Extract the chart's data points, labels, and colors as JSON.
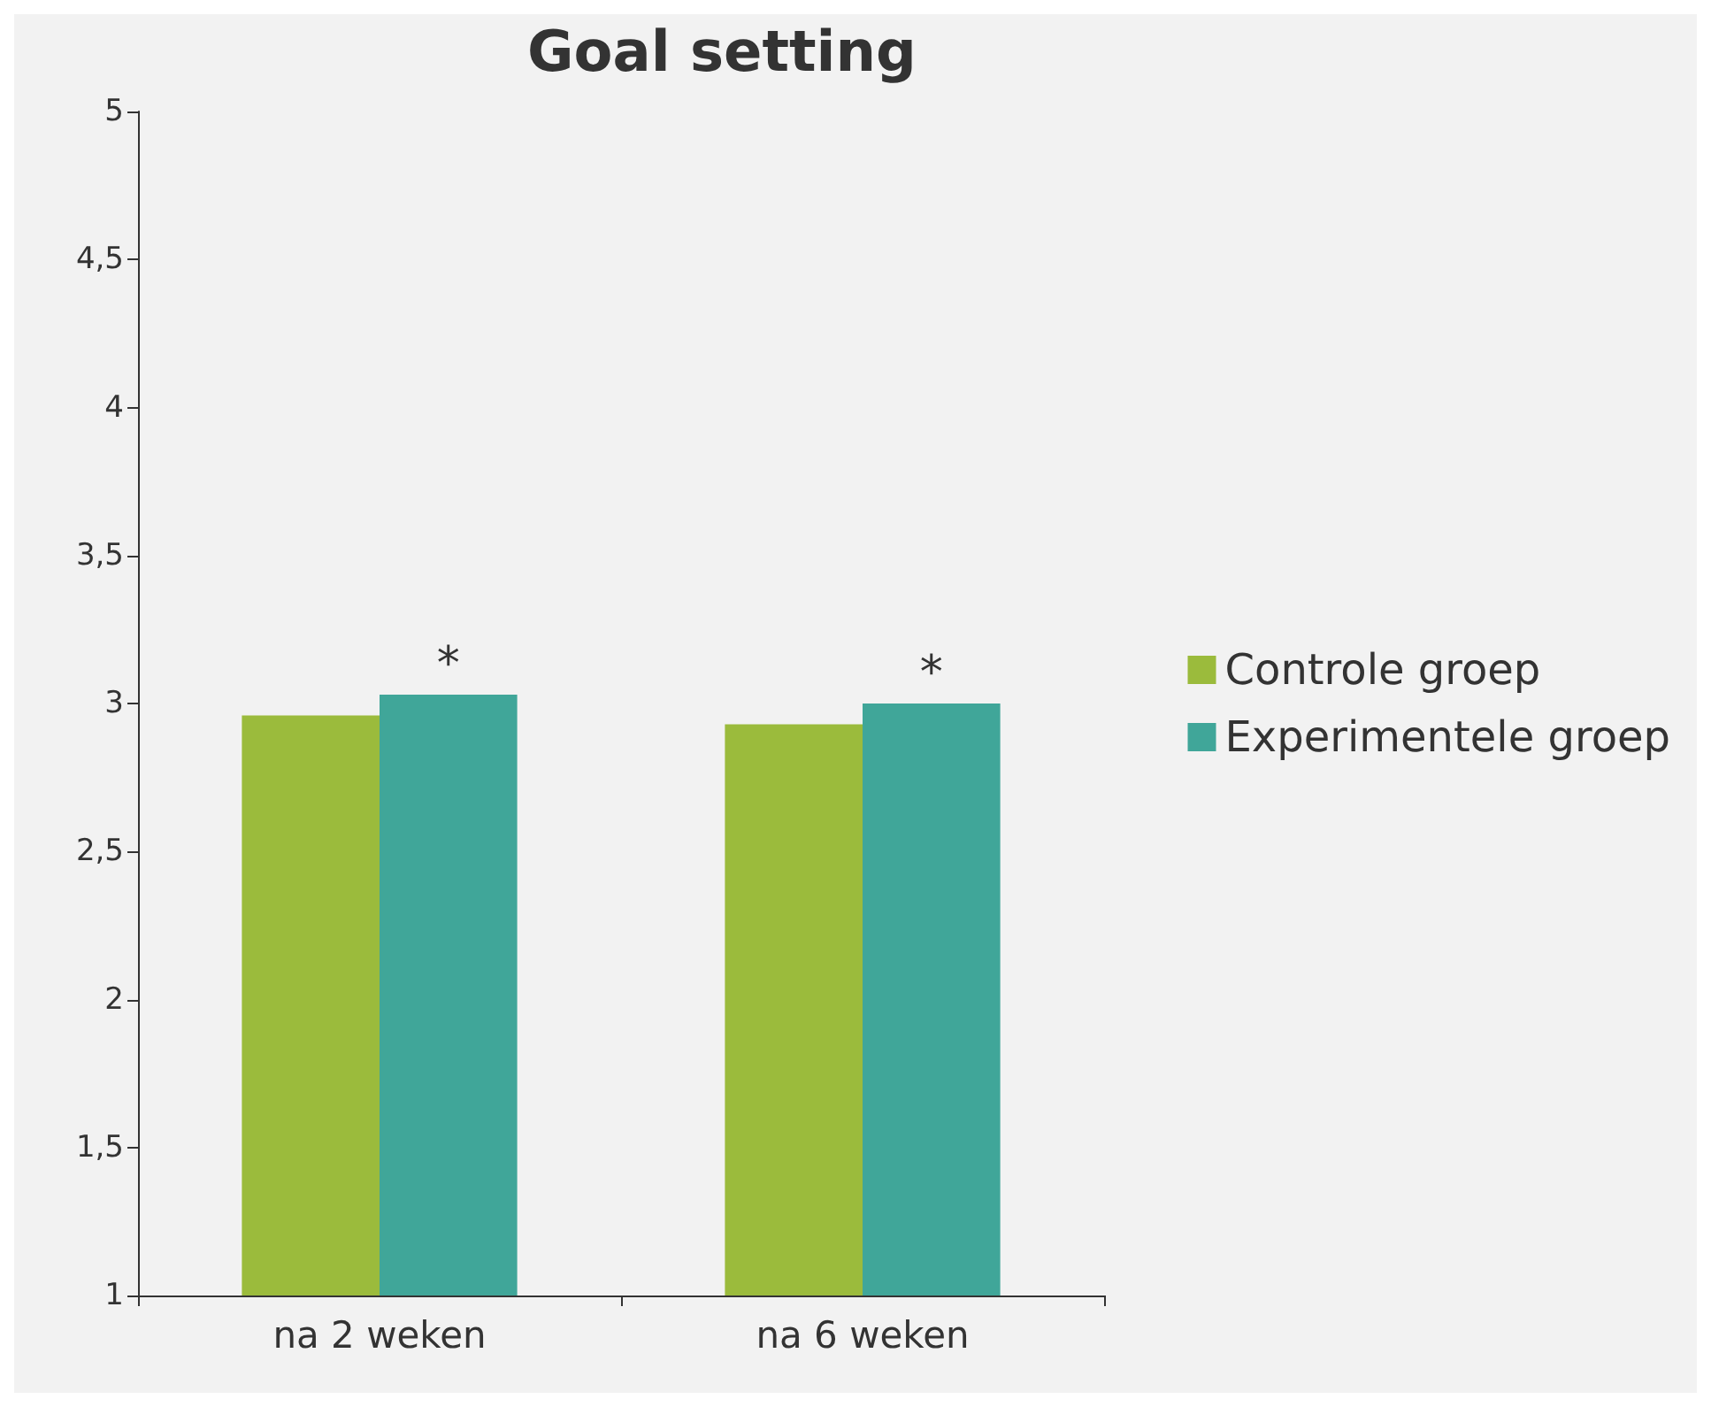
{
  "chart_data": {
    "type": "bar",
    "title": "Goal setting",
    "categories": [
      "na 2 weken",
      "na 6 weken"
    ],
    "series": [
      {
        "name": "Controle groep",
        "color": "#9bbb3c",
        "values": [
          2.96,
          2.93
        ]
      },
      {
        "name": "Experimentele groep",
        "color": "#40a699",
        "values": [
          3.03,
          3.0
        ]
      }
    ],
    "ylim": [
      1,
      5
    ],
    "yticks": [
      1,
      {
        "value": 1.5,
        "label": "1,5"
      },
      2,
      {
        "value": 2.5,
        "label": "2,5"
      },
      3,
      {
        "value": 3.5,
        "label": "3,5"
      },
      4,
      {
        "value": 4.5,
        "label": "4,5"
      },
      5
    ],
    "annotations": [
      {
        "text": "*",
        "x": "na 2 weken",
        "y": 3.03
      },
      {
        "text": "*",
        "x": "na 6 weken",
        "y": 3.0
      }
    ],
    "grid": false,
    "legend": "right"
  }
}
